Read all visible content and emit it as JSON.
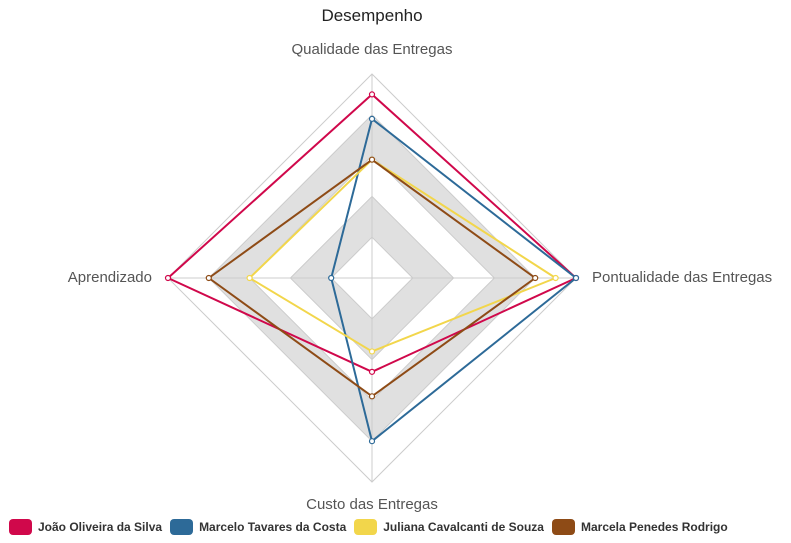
{
  "chart_data": {
    "type": "radar",
    "title": "Desempenho",
    "axes": [
      "Qualidade das Entregas",
      "Pontualidade das Entregas",
      "Custo das Entregas",
      "Aprendizado"
    ],
    "rlim": [
      0,
      5
    ],
    "bands": 5,
    "band_colors": [
      "#ffffff",
      "#e0e0e0"
    ],
    "grid_color": "#cccccc",
    "legend_position": "bottom-left",
    "series": [
      {
        "name": "João Oliveira da Silva",
        "color": "#d0084b",
        "values": [
          4.5,
          5.0,
          2.3,
          5.0
        ]
      },
      {
        "name": "Marcelo Tavares da Costa",
        "color": "#2d6a98",
        "values": [
          3.9,
          5.0,
          4.0,
          1.0
        ]
      },
      {
        "name": "Juliana Cavalcanti de Souza",
        "color": "#f2d64b",
        "values": [
          2.9,
          4.5,
          1.8,
          3.0
        ]
      },
      {
        "name": "Marcela Penedes Rodrigo",
        "color": "#8e4b16",
        "values": [
          2.9,
          4.0,
          2.9,
          4.0
        ]
      }
    ]
  }
}
